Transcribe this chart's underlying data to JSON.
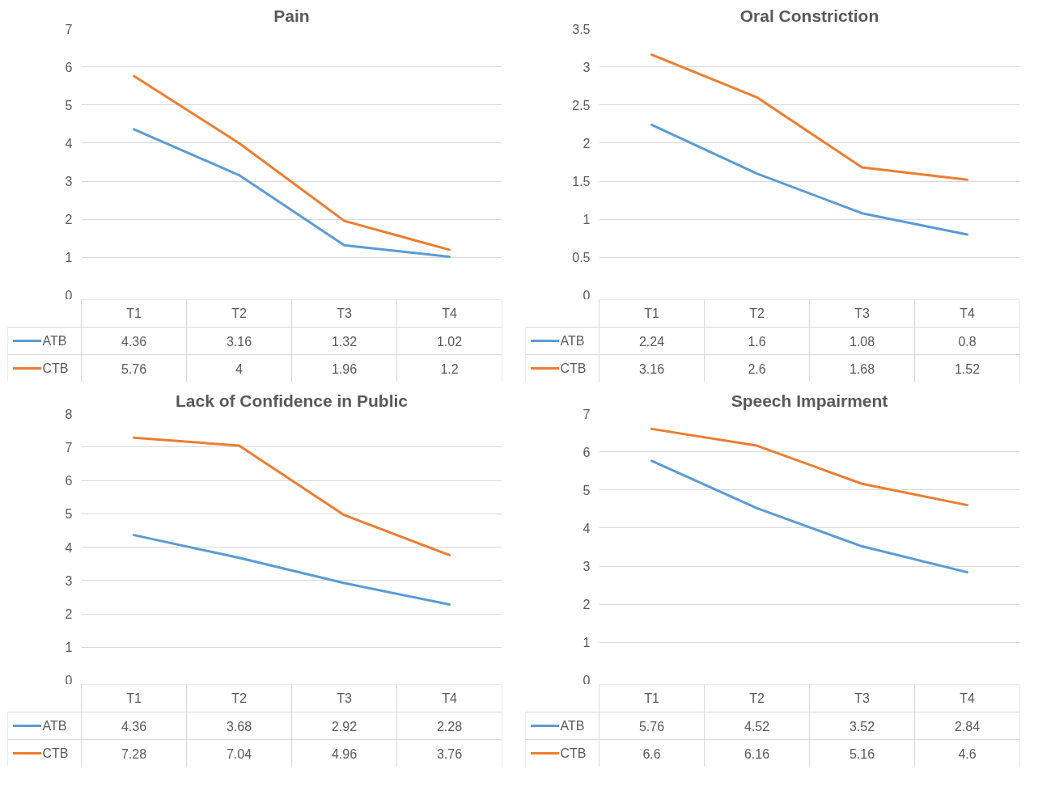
{
  "chart_data": [
    {
      "type": "line",
      "title": "Pain",
      "categories": [
        "T1",
        "T2",
        "T3",
        "T4"
      ],
      "series": [
        {
          "name": "ATB",
          "color": "#5b9bd5",
          "values": [
            4.36,
            3.16,
            1.32,
            1.02
          ]
        },
        {
          "name": "CTB",
          "color": "#ed7d31",
          "values": [
            5.76,
            4,
            1.96,
            1.2
          ]
        }
      ],
      "ylim": [
        0,
        7
      ],
      "yticks": [
        0,
        1,
        2,
        3,
        4,
        5,
        6,
        7
      ],
      "grid": "y",
      "legend": "bottom",
      "data_labels": true
    },
    {
      "type": "line",
      "title": "Oral Constriction",
      "categories": [
        "T1",
        "T2",
        "T3",
        "T4"
      ],
      "series": [
        {
          "name": "ATB",
          "color": "#5b9bd5",
          "values": [
            2.24,
            1.6,
            1.08,
            0.8
          ]
        },
        {
          "name": "CTB",
          "color": "#ed7d31",
          "values": [
            3.16,
            2.6,
            1.68,
            1.52
          ]
        }
      ],
      "ylim": [
        0,
        3.5
      ],
      "yticks": [
        0,
        0.5,
        1,
        1.5,
        2,
        2.5,
        3,
        3.5
      ],
      "grid": "y",
      "legend": "bottom",
      "data_labels": true
    },
    {
      "type": "line",
      "title": "Lack of Confidence in Public",
      "categories": [
        "T1",
        "T2",
        "T3",
        "T4"
      ],
      "series": [
        {
          "name": "ATB",
          "color": "#5b9bd5",
          "values": [
            4.36,
            3.68,
            2.92,
            2.28
          ]
        },
        {
          "name": "CTB",
          "color": "#ed7d31",
          "values": [
            7.28,
            7.04,
            4.96,
            3.76
          ]
        }
      ],
      "ylim": [
        0,
        8
      ],
      "yticks": [
        0,
        1,
        2,
        3,
        4,
        5,
        6,
        7,
        8
      ],
      "grid": "y",
      "legend": "bottom",
      "data_labels": true
    },
    {
      "type": "line",
      "title": "Speech Impairment",
      "categories": [
        "T1",
        "T2",
        "T3",
        "T4"
      ],
      "series": [
        {
          "name": "ATB",
          "color": "#5b9bd5",
          "values": [
            5.76,
            4.52,
            3.52,
            2.84
          ]
        },
        {
          "name": "CTB",
          "color": "#ed7d31",
          "values": [
            6.6,
            6.16,
            5.16,
            4.6
          ]
        }
      ],
      "ylim": [
        0,
        7
      ],
      "yticks": [
        0,
        1,
        2,
        3,
        4,
        5,
        6,
        7
      ],
      "grid": "y",
      "legend": "bottom",
      "data_labels": true
    }
  ]
}
